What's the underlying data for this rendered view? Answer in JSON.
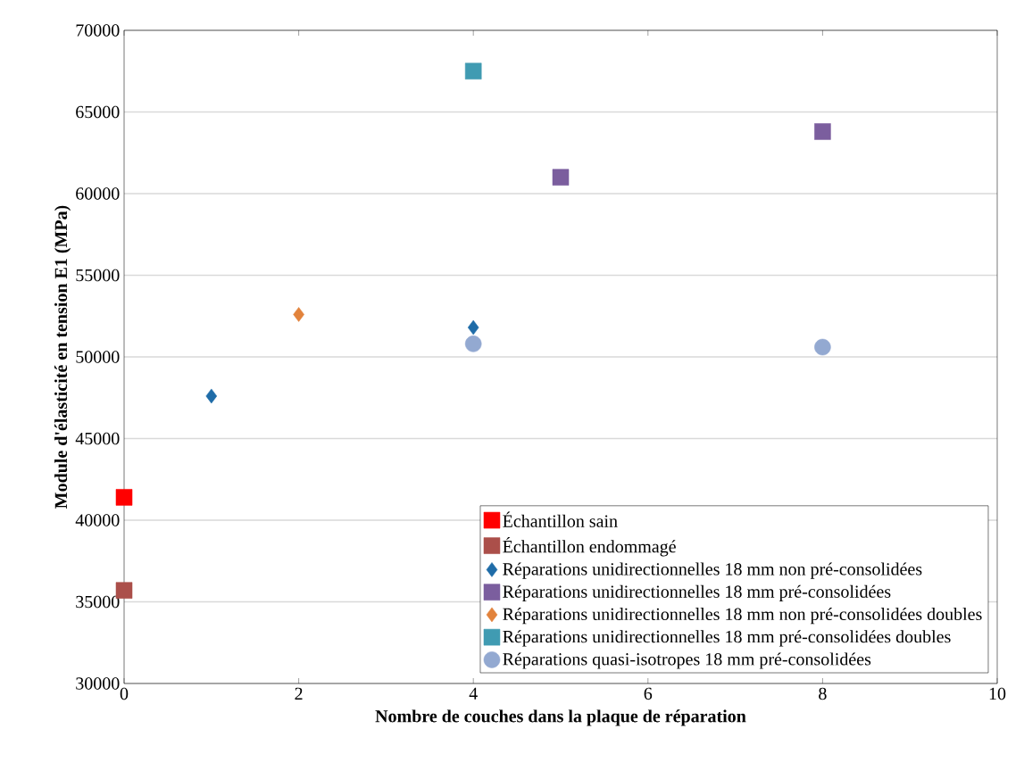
{
  "chart_data": {
    "type": "scatter",
    "xlabel": "Nombre de couches dans la plaque de réparation",
    "ylabel": "Module d'élasticité en tension E1 (MPa)",
    "xlim": [
      0,
      10
    ],
    "ylim": [
      30000,
      70000
    ],
    "xticks": [
      0,
      2,
      4,
      6,
      8,
      10
    ],
    "yticks": [
      30000,
      35000,
      40000,
      45000,
      50000,
      55000,
      60000,
      65000,
      70000
    ],
    "grid": "y",
    "legend": "bottom right",
    "series": [
      {
        "name": "Échantillon sain",
        "color": "#ff0000",
        "marker": "square",
        "x": [
          0
        ],
        "values": [
          41400
        ]
      },
      {
        "name": "Échantillon endommagé",
        "color": "#ab4f4a",
        "marker": "square",
        "x": [
          0
        ],
        "values": [
          35700
        ]
      },
      {
        "name": "Réparations unidirectionnelles 18 mm non pré-consolidées",
        "color": "#1f6ca8",
        "marker": "diamond",
        "x": [
          1,
          4
        ],
        "values": [
          47600,
          51800
        ]
      },
      {
        "name": "Réparations unidirectionnelles 18 mm pré-consolidées",
        "color": "#7b5e9e",
        "marker": "square",
        "x": [
          5,
          8
        ],
        "values": [
          61000,
          63800
        ]
      },
      {
        "name": "Réparations unidirectionnelles 18 mm non pré-consolidées doubles",
        "color": "#e2833c",
        "marker": "diamond",
        "x": [
          2
        ],
        "values": [
          52600
        ]
      },
      {
        "name": "Réparations unidirectionnelles 18 mm pré-consolidées doubles",
        "color": "#409bb2",
        "marker": "square",
        "x": [
          4
        ],
        "values": [
          67500
        ]
      },
      {
        "name": "Réparations quasi-isotropes 18 mm pré-consolidées",
        "color": "#93a9d1",
        "marker": "circle",
        "x": [
          4,
          8
        ],
        "values": [
          50800,
          50600
        ]
      }
    ]
  }
}
